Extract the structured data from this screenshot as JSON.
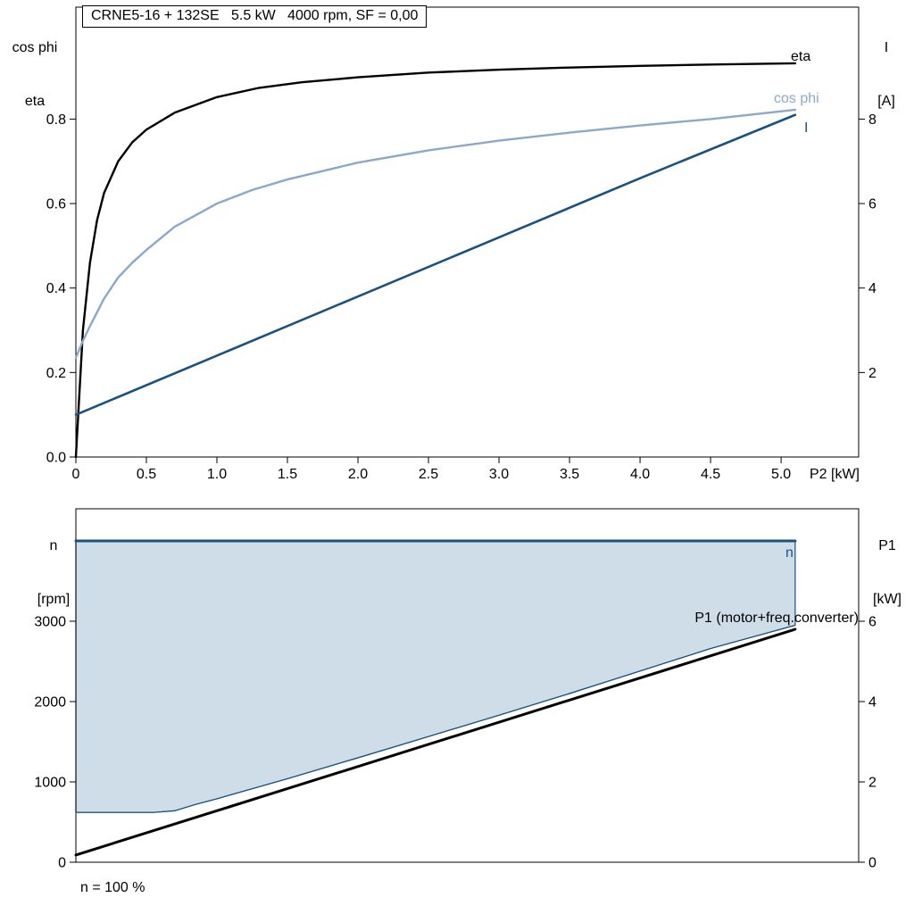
{
  "title": "CRNE5-16 + 132SE   5.5 kW   4000 rpm, SF = 0,00",
  "colors": {
    "black": "#000000",
    "cos_phi": "#8aa9c9",
    "dark_blue": "#1a527f",
    "area_fill": "#cfdde9",
    "axis": "#000000"
  },
  "labels": {
    "top_left_axis": [
      "cos phi",
      "eta"
    ],
    "top_right_axis": [
      "I",
      "[A]"
    ],
    "bottom_left_axis": [
      "n",
      "[rpm]"
    ],
    "bottom_right_axis": [
      "P1",
      "[kW]"
    ],
    "footnote": "n = 100 %"
  },
  "chart_data": [
    {
      "type": "line",
      "title": "CRNE5-16 + 132SE   5.5 kW   4000 rpm, SF = 0,00",
      "xlabel": "P2 [kW]",
      "xlim": [
        0,
        5.55
      ],
      "grid": false,
      "legend_position": "curve-end-labels",
      "x_tick_values": [
        0,
        0.5,
        1,
        1.5,
        2,
        2.5,
        3,
        3.5,
        4,
        4.5,
        5
      ],
      "x_tick_labels": [
        "0",
        "0.5",
        "1.0",
        "1.5",
        "2.0",
        "2.5",
        "3.0",
        "3.5",
        "4.0",
        "4.5",
        "5.0"
      ],
      "left_axis": {
        "label": "cos phi / eta",
        "lim": [
          0,
          1.065
        ],
        "tick_values": [
          0,
          0.2,
          0.4,
          0.6,
          0.8
        ],
        "tick_labels": [
          "0.0",
          "0.2",
          "0.4",
          "0.6",
          "0.8"
        ]
      },
      "right_axis": {
        "label": "I [A]",
        "lim": [
          0,
          10.65
        ],
        "tick_values": [
          2,
          4,
          6,
          8
        ],
        "tick_labels": [
          "2",
          "4",
          "6",
          "8"
        ]
      },
      "series": [
        {
          "name": "eta",
          "axis": "left",
          "color_key": "black",
          "width": 2.4,
          "x": [
            0,
            0.05,
            0.1,
            0.15,
            0.2,
            0.3,
            0.4,
            0.5,
            0.7,
            1.0,
            1.3,
            1.6,
            2.0,
            2.5,
            3.0,
            3.5,
            4.0,
            4.5,
            5.1
          ],
          "y": [
            0,
            0.3,
            0.46,
            0.56,
            0.625,
            0.7,
            0.745,
            0.775,
            0.815,
            0.852,
            0.874,
            0.887,
            0.899,
            0.91,
            0.917,
            0.922,
            0.926,
            0.929,
            0.932
          ]
        },
        {
          "name": "cos phi",
          "axis": "left",
          "color_key": "cos_phi",
          "width": 2.4,
          "x": [
            0,
            0.05,
            0.1,
            0.2,
            0.3,
            0.4,
            0.5,
            0.7,
            1.0,
            1.25,
            1.5,
            2.0,
            2.5,
            3.0,
            3.5,
            4.0,
            4.5,
            5.1
          ],
          "y": [
            0.235,
            0.275,
            0.31,
            0.375,
            0.425,
            0.46,
            0.49,
            0.545,
            0.6,
            0.632,
            0.657,
            0.697,
            0.726,
            0.749,
            0.768,
            0.785,
            0.8,
            0.822
          ]
        },
        {
          "name": "I",
          "axis": "right",
          "color_key": "dark_blue",
          "width": 2.6,
          "x": [
            0,
            1.0,
            2.0,
            3.0,
            4.0,
            5.1
          ],
          "y": [
            1.0,
            2.4,
            3.8,
            5.2,
            6.6,
            8.1
          ]
        }
      ]
    },
    {
      "type": "line-area",
      "title": "",
      "xlabel": "",
      "footnote": "n = 100 %",
      "xlim": [
        0,
        5.55
      ],
      "grid": false,
      "x_tick_values": [],
      "x_tick_labels": [],
      "left_axis": {
        "label": "n [rpm]",
        "lim": [
          0,
          4400
        ],
        "tick_values": [
          0,
          1000,
          2000,
          3000
        ],
        "tick_labels": [
          "0",
          "1000",
          "2000",
          "3000"
        ]
      },
      "right_axis": {
        "label": "P1 [kW]",
        "lim": [
          0,
          8.8
        ],
        "tick_values": [
          0,
          2,
          4,
          6
        ],
        "tick_labels": [
          "0",
          "2",
          "4",
          "6"
        ]
      },
      "area": {
        "upper": "n",
        "lower": "n control range lower boundary",
        "color_key": "area_fill"
      },
      "series": [
        {
          "name": "n",
          "axis": "left",
          "color_key": "dark_blue",
          "width": 3,
          "x": [
            0,
            5.1
          ],
          "y": [
            4000,
            4000
          ]
        },
        {
          "name": "n control range lower boundary",
          "axis": "left",
          "color_key": "dark_blue",
          "width": 1.2,
          "x": [
            0,
            0.55,
            0.7,
            0.85,
            1.0,
            1.5,
            2.0,
            2.5,
            3.0,
            3.5,
            4.0,
            4.5,
            5.1
          ],
          "y": [
            620,
            620,
            640,
            720,
            790,
            1040,
            1300,
            1565,
            1830,
            2100,
            2380,
            2660,
            2950
          ]
        },
        {
          "name": "P1 (motor+freq.converter)",
          "axis": "right",
          "color_key": "black",
          "width": 3,
          "x": [
            0,
            5.1
          ],
          "y": [
            0.18,
            5.8
          ]
        }
      ]
    }
  ]
}
